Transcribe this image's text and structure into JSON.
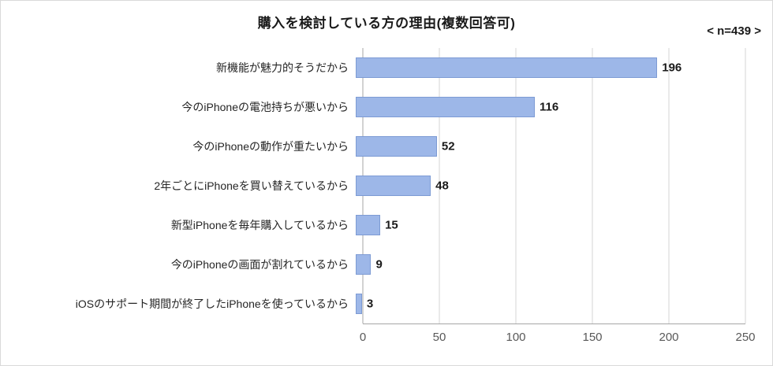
{
  "title": "購入を検討している方の理由(複数回答可)",
  "n_label": "< n=439 >",
  "chart_data": {
    "type": "bar",
    "orientation": "horizontal",
    "title": "購入を検討している方の理由(複数回答可)",
    "annotation": "< n=439 >",
    "categories": [
      "新機能が魅力的そうだから",
      "今のiPhoneの電池持ちが悪いから",
      "今のiPhoneの動作が重たいから",
      "2年ごとにiPhoneを買い替えているから",
      "新型iPhoneを毎年購入しているから",
      "今のiPhoneの画面が割れているから",
      "iOSのサポート期間が終了したiPhoneを使っているから"
    ],
    "values": [
      196,
      116,
      52,
      48,
      15,
      9,
      3
    ],
    "xlabel": "",
    "ylabel": "",
    "xlim": [
      0,
      250
    ],
    "xticks": [
      0,
      50,
      100,
      150,
      200,
      250
    ],
    "grid": true,
    "legend": "none",
    "bar_color": "#9db7e8",
    "bar_border_color": "#7d9bd4"
  }
}
